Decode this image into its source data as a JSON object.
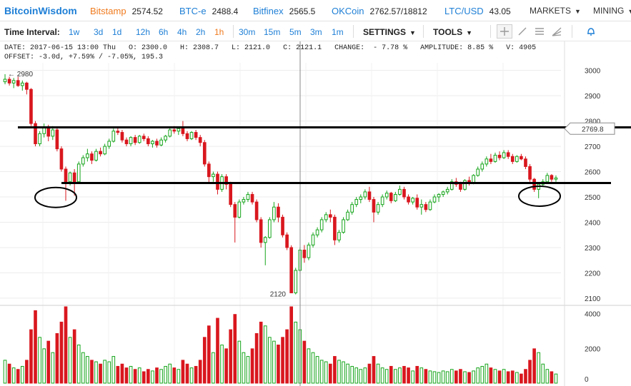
{
  "brand": "BitcoinWisdom",
  "tickers": [
    {
      "name": "Bitstamp",
      "value": "2574.52",
      "active": true
    },
    {
      "name": "BTC-e",
      "value": "2488.4",
      "active": false
    },
    {
      "name": "Bitfinex",
      "value": "2565.5",
      "active": false
    },
    {
      "name": "OKCoin",
      "value": "2762.57/18812",
      "active": false
    },
    {
      "name": "LTC/USD",
      "value": "43.05",
      "active": false
    }
  ],
  "top_menus": {
    "markets": "MARKETS",
    "mining": "MINING"
  },
  "toolbar": {
    "interval_label": "Time Interval:",
    "intervals": [
      "1w",
      "3d",
      "1d",
      "12h",
      "6h",
      "4h",
      "2h",
      "1h",
      "30m",
      "15m",
      "5m",
      "3m",
      "1m"
    ],
    "selected_interval": "1h",
    "settings": "SETTINGS",
    "tools": "TOOLS"
  },
  "tool_icons": [
    "crosshair-icon",
    "trendline-icon",
    "horizontal-lines-icon",
    "fan-icon",
    "bell-icon"
  ],
  "ohlc_info": {
    "line1": "DATE: 2017-06-15 13:00 Thu   O: 2300.0   H: 2308.7   L: 2121.0   C: 2121.1   CHANGE:  - 7.78 %   AMPLITUDE: 8.85 %   V: 4905",
    "line2": "OFFSET: -3.0d, +7.59% / -7.05%, 195.3"
  },
  "colors": {
    "up": "#16a51b",
    "down": "#d9171e",
    "grid": "#ececec",
    "accent": "#1e7fd6",
    "selected": "#f07b1f"
  },
  "chart_data": {
    "type": "candlestick",
    "price_axis": {
      "ticks": [
        2100,
        2200,
        2300,
        2400,
        2500,
        2600,
        2700,
        2800,
        2900,
        3000
      ],
      "min": 2080,
      "max": 3030
    },
    "volume_axis": {
      "ticks": [
        0,
        2000,
        4000
      ],
      "min": 0,
      "max": 4400
    },
    "current_price_label": "2769.8",
    "high_annotation": "2980",
    "low_annotation": "2120",
    "resistance_level": 2775,
    "support_level": 2555,
    "circled_lows": [
      2498,
      2503
    ],
    "grid": true,
    "candles": [
      {
        "o": 2955,
        "h": 2985,
        "l": 2945,
        "c": 2965,
        "v": 30
      },
      {
        "o": 2965,
        "h": 2975,
        "l": 2940,
        "c": 2950,
        "v": 25
      },
      {
        "o": 2950,
        "h": 2970,
        "l": 2930,
        "c": 2960,
        "v": 20
      },
      {
        "o": 2960,
        "h": 2975,
        "l": 2935,
        "c": 2940,
        "v": 18
      },
      {
        "o": 2940,
        "h": 2960,
        "l": 2920,
        "c": 2950,
        "v": 22
      },
      {
        "o": 2950,
        "h": 2955,
        "l": 2905,
        "c": 2925,
        "v": 30
      },
      {
        "o": 2925,
        "h": 2930,
        "l": 2780,
        "c": 2790,
        "v": 70
      },
      {
        "o": 2790,
        "h": 2800,
        "l": 2700,
        "c": 2710,
        "v": 95
      },
      {
        "o": 2710,
        "h": 2760,
        "l": 2700,
        "c": 2750,
        "v": 60
      },
      {
        "o": 2750,
        "h": 2790,
        "l": 2735,
        "c": 2775,
        "v": 45
      },
      {
        "o": 2775,
        "h": 2785,
        "l": 2720,
        "c": 2740,
        "v": 55
      },
      {
        "o": 2740,
        "h": 2780,
        "l": 2725,
        "c": 2765,
        "v": 40
      },
      {
        "o": 2765,
        "h": 2775,
        "l": 2680,
        "c": 2690,
        "v": 65
      },
      {
        "o": 2690,
        "h": 2700,
        "l": 2600,
        "c": 2610,
        "v": 80
      },
      {
        "o": 2610,
        "h": 2620,
        "l": 2485,
        "c": 2560,
        "v": 100
      },
      {
        "o": 2560,
        "h": 2600,
        "l": 2545,
        "c": 2595,
        "v": 60
      },
      {
        "o": 2595,
        "h": 2610,
        "l": 2505,
        "c": 2560,
        "v": 70
      },
      {
        "o": 2560,
        "h": 2640,
        "l": 2555,
        "c": 2630,
        "v": 50
      },
      {
        "o": 2630,
        "h": 2665,
        "l": 2620,
        "c": 2655,
        "v": 40
      },
      {
        "o": 2655,
        "h": 2690,
        "l": 2640,
        "c": 2670,
        "v": 35
      },
      {
        "o": 2670,
        "h": 2680,
        "l": 2630,
        "c": 2645,
        "v": 30
      },
      {
        "o": 2645,
        "h": 2690,
        "l": 2640,
        "c": 2680,
        "v": 28
      },
      {
        "o": 2680,
        "h": 2695,
        "l": 2660,
        "c": 2670,
        "v": 25
      },
      {
        "o": 2670,
        "h": 2710,
        "l": 2665,
        "c": 2700,
        "v": 30
      },
      {
        "o": 2700,
        "h": 2730,
        "l": 2690,
        "c": 2720,
        "v": 28
      },
      {
        "o": 2720,
        "h": 2770,
        "l": 2715,
        "c": 2760,
        "v": 35
      },
      {
        "o": 2760,
        "h": 2775,
        "l": 2745,
        "c": 2755,
        "v": 22
      },
      {
        "o": 2755,
        "h": 2765,
        "l": 2715,
        "c": 2725,
        "v": 25
      },
      {
        "o": 2725,
        "h": 2735,
        "l": 2700,
        "c": 2710,
        "v": 20
      },
      {
        "o": 2710,
        "h": 2740,
        "l": 2700,
        "c": 2735,
        "v": 22
      },
      {
        "o": 2735,
        "h": 2745,
        "l": 2705,
        "c": 2715,
        "v": 18
      },
      {
        "o": 2715,
        "h": 2745,
        "l": 2710,
        "c": 2740,
        "v": 20
      },
      {
        "o": 2740,
        "h": 2750,
        "l": 2720,
        "c": 2730,
        "v": 15
      },
      {
        "o": 2730,
        "h": 2740,
        "l": 2700,
        "c": 2710,
        "v": 18
      },
      {
        "o": 2710,
        "h": 2725,
        "l": 2695,
        "c": 2720,
        "v": 16
      },
      {
        "o": 2720,
        "h": 2730,
        "l": 2695,
        "c": 2705,
        "v": 20
      },
      {
        "o": 2705,
        "h": 2735,
        "l": 2700,
        "c": 2725,
        "v": 18
      },
      {
        "o": 2725,
        "h": 2745,
        "l": 2715,
        "c": 2740,
        "v": 22
      },
      {
        "o": 2740,
        "h": 2775,
        "l": 2735,
        "c": 2765,
        "v": 25
      },
      {
        "o": 2765,
        "h": 2780,
        "l": 2750,
        "c": 2760,
        "v": 20
      },
      {
        "o": 2760,
        "h": 2775,
        "l": 2745,
        "c": 2770,
        "v": 18
      },
      {
        "o": 2770,
        "h": 2800,
        "l": 2740,
        "c": 2750,
        "v": 30
      },
      {
        "o": 2750,
        "h": 2760,
        "l": 2720,
        "c": 2730,
        "v": 25
      },
      {
        "o": 2730,
        "h": 2760,
        "l": 2725,
        "c": 2755,
        "v": 20
      },
      {
        "o": 2755,
        "h": 2765,
        "l": 2725,
        "c": 2735,
        "v": 22
      },
      {
        "o": 2735,
        "h": 2745,
        "l": 2700,
        "c": 2715,
        "v": 30
      },
      {
        "o": 2715,
        "h": 2725,
        "l": 2620,
        "c": 2630,
        "v": 60
      },
      {
        "o": 2630,
        "h": 2640,
        "l": 2555,
        "c": 2580,
        "v": 75
      },
      {
        "o": 2580,
        "h": 2600,
        "l": 2560,
        "c": 2590,
        "v": 40
      },
      {
        "o": 2590,
        "h": 2600,
        "l": 2510,
        "c": 2530,
        "v": 85
      },
      {
        "o": 2530,
        "h": 2590,
        "l": 2520,
        "c": 2580,
        "v": 50
      },
      {
        "o": 2580,
        "h": 2590,
        "l": 2530,
        "c": 2550,
        "v": 45
      },
      {
        "o": 2550,
        "h": 2560,
        "l": 2460,
        "c": 2470,
        "v": 70
      },
      {
        "o": 2470,
        "h": 2480,
        "l": 2320,
        "c": 2420,
        "v": 90
      },
      {
        "o": 2420,
        "h": 2490,
        "l": 2415,
        "c": 2480,
        "v": 55
      },
      {
        "o": 2480,
        "h": 2500,
        "l": 2470,
        "c": 2490,
        "v": 40
      },
      {
        "o": 2490,
        "h": 2520,
        "l": 2480,
        "c": 2510,
        "v": 35
      },
      {
        "o": 2510,
        "h": 2520,
        "l": 2470,
        "c": 2480,
        "v": 45
      },
      {
        "o": 2480,
        "h": 2490,
        "l": 2400,
        "c": 2410,
        "v": 65
      },
      {
        "o": 2410,
        "h": 2420,
        "l": 2300,
        "c": 2320,
        "v": 80
      },
      {
        "o": 2320,
        "h": 2345,
        "l": 2230,
        "c": 2340,
        "v": 75
      },
      {
        "o": 2340,
        "h": 2420,
        "l": 2335,
        "c": 2410,
        "v": 60
      },
      {
        "o": 2410,
        "h": 2480,
        "l": 2400,
        "c": 2460,
        "v": 55
      },
      {
        "o": 2460,
        "h": 2475,
        "l": 2400,
        "c": 2420,
        "v": 50
      },
      {
        "o": 2420,
        "h": 2430,
        "l": 2340,
        "c": 2350,
        "v": 60
      },
      {
        "o": 2350,
        "h": 2360,
        "l": 2290,
        "c": 2300,
        "v": 70
      },
      {
        "o": 2300,
        "h": 2309,
        "l": 2121,
        "c": 2121,
        "v": 100
      },
      {
        "o": 2121,
        "h": 2220,
        "l": 2115,
        "c": 2210,
        "v": 80
      },
      {
        "o": 2210,
        "h": 2300,
        "l": 2205,
        "c": 2290,
        "v": 70
      },
      {
        "o": 2290,
        "h": 2310,
        "l": 2240,
        "c": 2260,
        "v": 55
      },
      {
        "o": 2260,
        "h": 2320,
        "l": 2250,
        "c": 2310,
        "v": 45
      },
      {
        "o": 2310,
        "h": 2360,
        "l": 2300,
        "c": 2350,
        "v": 40
      },
      {
        "o": 2350,
        "h": 2380,
        "l": 2340,
        "c": 2370,
        "v": 35
      },
      {
        "o": 2370,
        "h": 2420,
        "l": 2360,
        "c": 2410,
        "v": 30
      },
      {
        "o": 2410,
        "h": 2440,
        "l": 2400,
        "c": 2430,
        "v": 28
      },
      {
        "o": 2430,
        "h": 2450,
        "l": 2400,
        "c": 2420,
        "v": 25
      },
      {
        "o": 2420,
        "h": 2430,
        "l": 2310,
        "c": 2330,
        "v": 35
      },
      {
        "o": 2330,
        "h": 2370,
        "l": 2320,
        "c": 2360,
        "v": 30
      },
      {
        "o": 2360,
        "h": 2420,
        "l": 2355,
        "c": 2410,
        "v": 28
      },
      {
        "o": 2410,
        "h": 2450,
        "l": 2405,
        "c": 2440,
        "v": 25
      },
      {
        "o": 2440,
        "h": 2480,
        "l": 2430,
        "c": 2470,
        "v": 22
      },
      {
        "o": 2470,
        "h": 2500,
        "l": 2460,
        "c": 2490,
        "v": 20
      },
      {
        "o": 2490,
        "h": 2510,
        "l": 2475,
        "c": 2500,
        "v": 18
      },
      {
        "o": 2500,
        "h": 2530,
        "l": 2490,
        "c": 2520,
        "v": 20
      },
      {
        "o": 2520,
        "h": 2540,
        "l": 2480,
        "c": 2490,
        "v": 25
      },
      {
        "o": 2490,
        "h": 2500,
        "l": 2400,
        "c": 2440,
        "v": 35
      },
      {
        "o": 2440,
        "h": 2480,
        "l": 2430,
        "c": 2470,
        "v": 25
      },
      {
        "o": 2470,
        "h": 2510,
        "l": 2460,
        "c": 2500,
        "v": 20
      },
      {
        "o": 2500,
        "h": 2525,
        "l": 2490,
        "c": 2515,
        "v": 18
      },
      {
        "o": 2515,
        "h": 2520,
        "l": 2475,
        "c": 2485,
        "v": 22
      },
      {
        "o": 2485,
        "h": 2520,
        "l": 2480,
        "c": 2510,
        "v": 18
      },
      {
        "o": 2510,
        "h": 2545,
        "l": 2505,
        "c": 2530,
        "v": 20
      },
      {
        "o": 2530,
        "h": 2540,
        "l": 2490,
        "c": 2500,
        "v": 22
      },
      {
        "o": 2500,
        "h": 2510,
        "l": 2470,
        "c": 2480,
        "v": 20
      },
      {
        "o": 2480,
        "h": 2500,
        "l": 2470,
        "c": 2495,
        "v": 16
      },
      {
        "o": 2495,
        "h": 2510,
        "l": 2450,
        "c": 2460,
        "v": 22
      },
      {
        "o": 2460,
        "h": 2490,
        "l": 2430,
        "c": 2470,
        "v": 20
      },
      {
        "o": 2470,
        "h": 2480,
        "l": 2440,
        "c": 2450,
        "v": 18
      },
      {
        "o": 2450,
        "h": 2490,
        "l": 2445,
        "c": 2480,
        "v": 16
      },
      {
        "o": 2480,
        "h": 2510,
        "l": 2475,
        "c": 2500,
        "v": 15
      },
      {
        "o": 2500,
        "h": 2515,
        "l": 2480,
        "c": 2510,
        "v": 14
      },
      {
        "o": 2510,
        "h": 2525,
        "l": 2500,
        "c": 2520,
        "v": 16
      },
      {
        "o": 2520,
        "h": 2540,
        "l": 2510,
        "c": 2530,
        "v": 15
      },
      {
        "o": 2530,
        "h": 2570,
        "l": 2525,
        "c": 2560,
        "v": 18
      },
      {
        "o": 2560,
        "h": 2575,
        "l": 2540,
        "c": 2550,
        "v": 16
      },
      {
        "o": 2550,
        "h": 2560,
        "l": 2520,
        "c": 2530,
        "v": 18
      },
      {
        "o": 2530,
        "h": 2570,
        "l": 2525,
        "c": 2565,
        "v": 15
      },
      {
        "o": 2565,
        "h": 2580,
        "l": 2545,
        "c": 2555,
        "v": 14
      },
      {
        "o": 2555,
        "h": 2590,
        "l": 2550,
        "c": 2585,
        "v": 16
      },
      {
        "o": 2585,
        "h": 2620,
        "l": 2580,
        "c": 2610,
        "v": 20
      },
      {
        "o": 2610,
        "h": 2640,
        "l": 2600,
        "c": 2630,
        "v": 22
      },
      {
        "o": 2630,
        "h": 2660,
        "l": 2620,
        "c": 2650,
        "v": 25
      },
      {
        "o": 2650,
        "h": 2670,
        "l": 2630,
        "c": 2640,
        "v": 20
      },
      {
        "o": 2640,
        "h": 2675,
        "l": 2635,
        "c": 2665,
        "v": 18
      },
      {
        "o": 2665,
        "h": 2680,
        "l": 2645,
        "c": 2655,
        "v": 16
      },
      {
        "o": 2655,
        "h": 2685,
        "l": 2650,
        "c": 2675,
        "v": 18
      },
      {
        "o": 2675,
        "h": 2685,
        "l": 2650,
        "c": 2660,
        "v": 15
      },
      {
        "o": 2660,
        "h": 2670,
        "l": 2630,
        "c": 2640,
        "v": 16
      },
      {
        "o": 2640,
        "h": 2665,
        "l": 2635,
        "c": 2660,
        "v": 14
      },
      {
        "o": 2660,
        "h": 2670,
        "l": 2645,
        "c": 2650,
        "v": 12
      },
      {
        "o": 2650,
        "h": 2660,
        "l": 2610,
        "c": 2620,
        "v": 18
      },
      {
        "o": 2620,
        "h": 2630,
        "l": 2560,
        "c": 2570,
        "v": 30
      },
      {
        "o": 2570,
        "h": 2575,
        "l": 2520,
        "c": 2530,
        "v": 45
      },
      {
        "o": 2530,
        "h": 2555,
        "l": 2495,
        "c": 2550,
        "v": 40
      },
      {
        "o": 2550,
        "h": 2570,
        "l": 2540,
        "c": 2560,
        "v": 25
      },
      {
        "o": 2560,
        "h": 2595,
        "l": 2555,
        "c": 2585,
        "v": 18
      },
      {
        "o": 2585,
        "h": 2590,
        "l": 2560,
        "c": 2570,
        "v": 15
      },
      {
        "o": 2570,
        "h": 2585,
        "l": 2560,
        "c": 2575,
        "v": 12
      }
    ]
  }
}
